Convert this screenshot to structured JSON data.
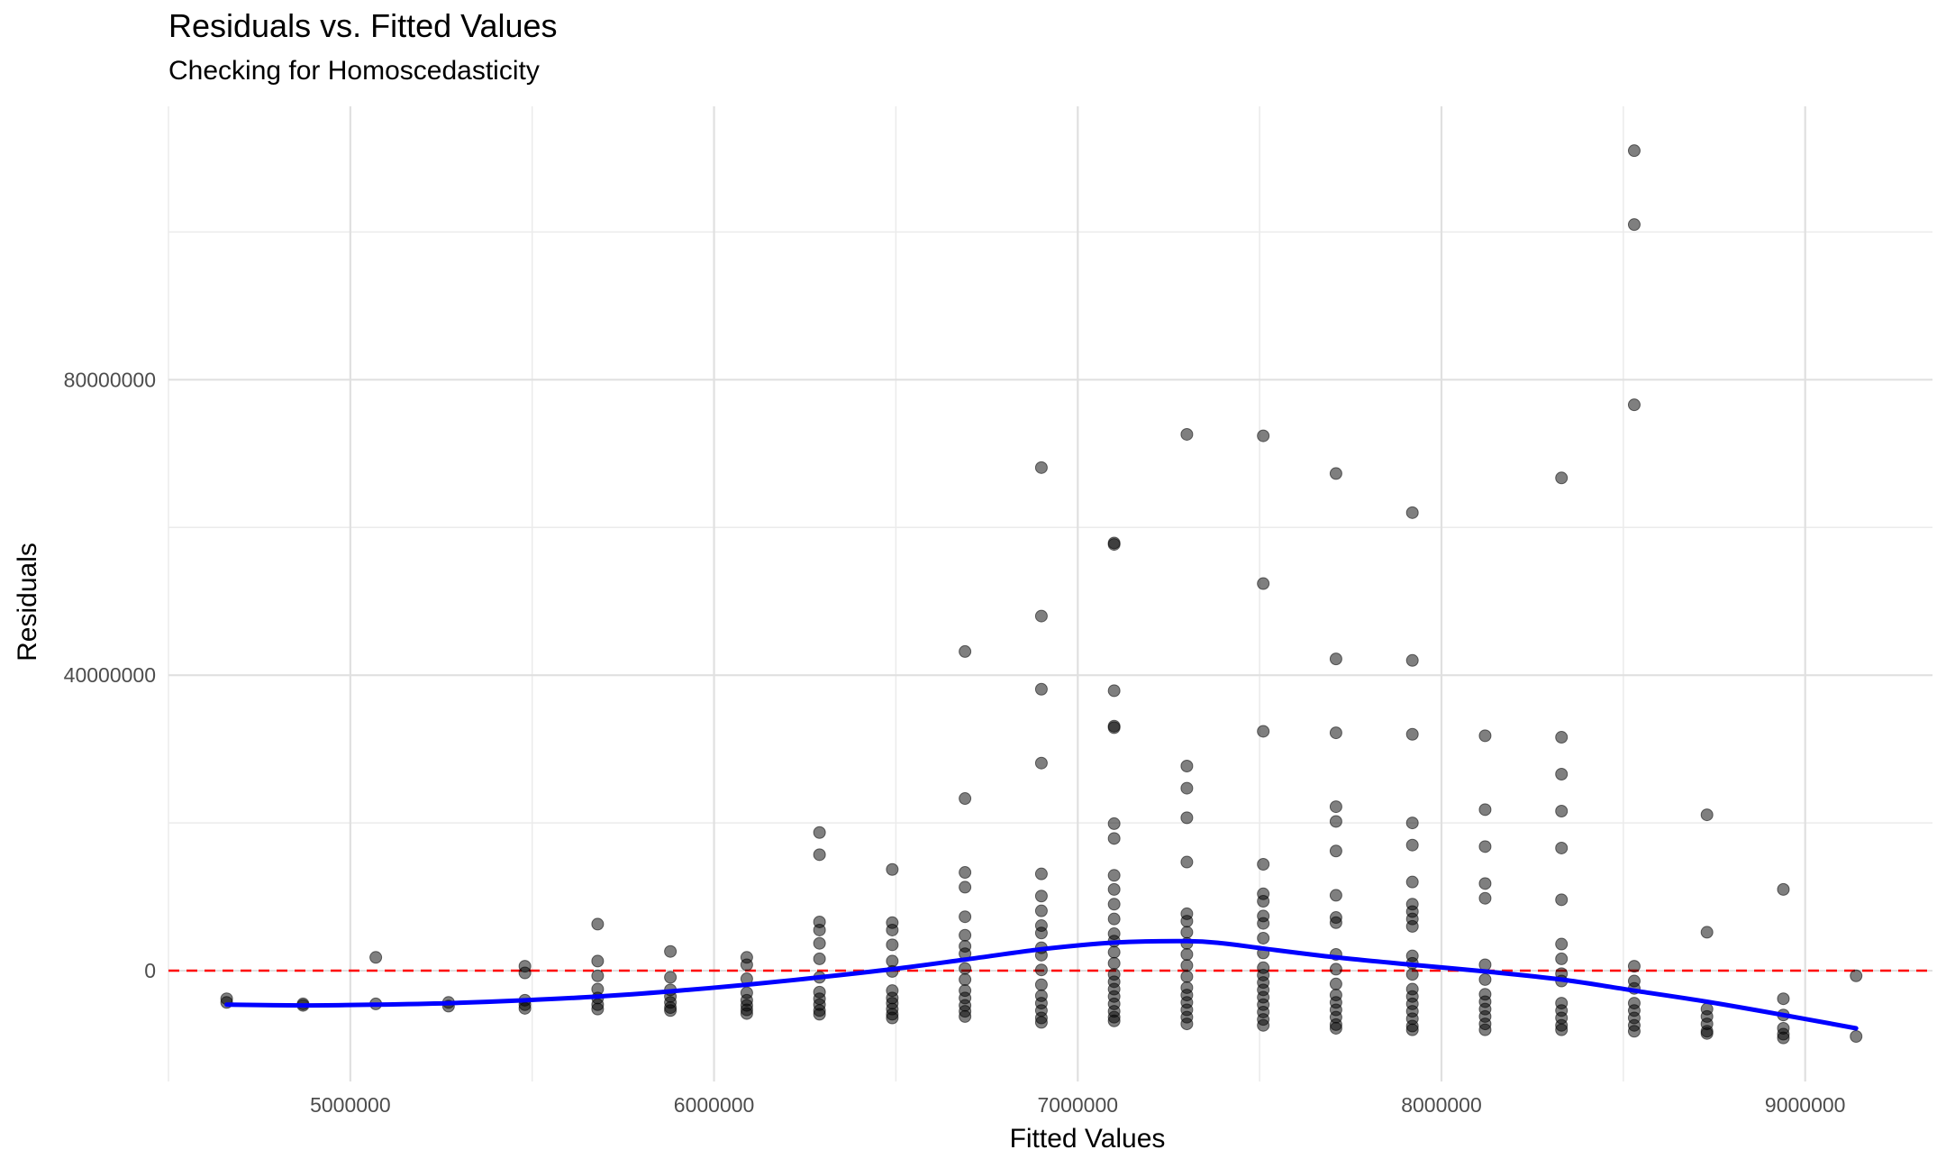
{
  "chart_data": {
    "type": "scatter",
    "title": "Residuals vs. Fitted Values",
    "subtitle": "Checking for Homoscedasticity",
    "xlabel": "Fitted Values",
    "ylabel": "Residuals",
    "xlim": [
      4500000,
      9350000
    ],
    "ylim": [
      -15000000,
      117000000
    ],
    "x_ticks": [
      5000000,
      6000000,
      7000000,
      8000000,
      9000000
    ],
    "y_ticks": [
      0,
      40000000,
      80000000
    ],
    "grid": true,
    "reference_line": {
      "y": 0,
      "color": "#ff0000",
      "style": "dashed"
    },
    "smooth_line_color": "#0000ff",
    "point_color": "#000000",
    "points": [
      [
        4660000,
        -3800000
      ],
      [
        4660000,
        -4300000
      ],
      [
        4870000,
        -4500000
      ],
      [
        4870000,
        -4700000
      ],
      [
        5070000,
        1800000
      ],
      [
        5070000,
        -4500000
      ],
      [
        5270000,
        -4300000
      ],
      [
        5270000,
        -4800000
      ],
      [
        5480000,
        600000
      ],
      [
        5480000,
        -300000
      ],
      [
        5480000,
        -4000000
      ],
      [
        5480000,
        -4600000
      ],
      [
        5480000,
        -5100000
      ],
      [
        5680000,
        6300000
      ],
      [
        5680000,
        1300000
      ],
      [
        5680000,
        -700000
      ],
      [
        5680000,
        -2500000
      ],
      [
        5680000,
        -3700000
      ],
      [
        5680000,
        -4600000
      ],
      [
        5680000,
        -5200000
      ],
      [
        5880000,
        2600000
      ],
      [
        5880000,
        -900000
      ],
      [
        5880000,
        -2600000
      ],
      [
        5880000,
        -3500000
      ],
      [
        5880000,
        -4300000
      ],
      [
        5880000,
        -5000000
      ],
      [
        5880000,
        -5400000
      ],
      [
        6090000,
        1800000
      ],
      [
        6090000,
        800000
      ],
      [
        6090000,
        -1100000
      ],
      [
        6090000,
        -3000000
      ],
      [
        6090000,
        -4000000
      ],
      [
        6090000,
        -4700000
      ],
      [
        6090000,
        -5300000
      ],
      [
        6090000,
        -5800000
      ],
      [
        6290000,
        18700000
      ],
      [
        6290000,
        15700000
      ],
      [
        6290000,
        6600000
      ],
      [
        6290000,
        5500000
      ],
      [
        6290000,
        3700000
      ],
      [
        6290000,
        1600000
      ],
      [
        6290000,
        -900000
      ],
      [
        6290000,
        -2900000
      ],
      [
        6290000,
        -3800000
      ],
      [
        6290000,
        -4600000
      ],
      [
        6290000,
        -5400000
      ],
      [
        6290000,
        -5900000
      ],
      [
        6490000,
        13700000
      ],
      [
        6490000,
        6500000
      ],
      [
        6490000,
        5500000
      ],
      [
        6490000,
        3500000
      ],
      [
        6490000,
        1300000
      ],
      [
        6490000,
        -100000
      ],
      [
        6490000,
        -2700000
      ],
      [
        6490000,
        -3700000
      ],
      [
        6490000,
        -4400000
      ],
      [
        6490000,
        -5200000
      ],
      [
        6490000,
        -5900000
      ],
      [
        6490000,
        -6400000
      ],
      [
        6690000,
        43200000
      ],
      [
        6690000,
        23300000
      ],
      [
        6690000,
        13300000
      ],
      [
        6690000,
        11300000
      ],
      [
        6690000,
        7300000
      ],
      [
        6690000,
        4800000
      ],
      [
        6690000,
        3300000
      ],
      [
        6690000,
        2300000
      ],
      [
        6690000,
        300000
      ],
      [
        6690000,
        -1200000
      ],
      [
        6690000,
        -2700000
      ],
      [
        6690000,
        -3700000
      ],
      [
        6690000,
        -4700000
      ],
      [
        6690000,
        -5500000
      ],
      [
        6690000,
        -6200000
      ],
      [
        6900000,
        68100000
      ],
      [
        6900000,
        48000000
      ],
      [
        6900000,
        38100000
      ],
      [
        6900000,
        28100000
      ],
      [
        6900000,
        13100000
      ],
      [
        6900000,
        10100000
      ],
      [
        6900000,
        8100000
      ],
      [
        6900000,
        6100000
      ],
      [
        6900000,
        5100000
      ],
      [
        6900000,
        3100000
      ],
      [
        6900000,
        2100000
      ],
      [
        6900000,
        100000
      ],
      [
        6900000,
        -1900000
      ],
      [
        6900000,
        -3400000
      ],
      [
        6900000,
        -4400000
      ],
      [
        6900000,
        -5400000
      ],
      [
        6900000,
        -6400000
      ],
      [
        6900000,
        -7000000
      ],
      [
        7100000,
        57900000
      ],
      [
        7100000,
        57700000
      ],
      [
        7100000,
        37900000
      ],
      [
        7100000,
        33100000
      ],
      [
        7100000,
        32900000
      ],
      [
        7100000,
        19900000
      ],
      [
        7100000,
        17900000
      ],
      [
        7100000,
        12900000
      ],
      [
        7100000,
        11000000
      ],
      [
        7100000,
        9000000
      ],
      [
        7100000,
        7000000
      ],
      [
        7100000,
        5000000
      ],
      [
        7100000,
        4000000
      ],
      [
        7100000,
        2500000
      ],
      [
        7100000,
        1000000
      ],
      [
        7100000,
        -500000
      ],
      [
        7100000,
        -1500000
      ],
      [
        7100000,
        -2500000
      ],
      [
        7100000,
        -3500000
      ],
      [
        7100000,
        -4500000
      ],
      [
        7100000,
        -5500000
      ],
      [
        7100000,
        -6300000
      ],
      [
        7100000,
        -6800000
      ],
      [
        7300000,
        72600000
      ],
      [
        7300000,
        27700000
      ],
      [
        7300000,
        24700000
      ],
      [
        7300000,
        20700000
      ],
      [
        7300000,
        14700000
      ],
      [
        7300000,
        7700000
      ],
      [
        7300000,
        6700000
      ],
      [
        7300000,
        5200000
      ],
      [
        7300000,
        3700000
      ],
      [
        7300000,
        2200000
      ],
      [
        7300000,
        700000
      ],
      [
        7300000,
        -800000
      ],
      [
        7300000,
        -2300000
      ],
      [
        7300000,
        -3300000
      ],
      [
        7300000,
        -4300000
      ],
      [
        7300000,
        -5300000
      ],
      [
        7300000,
        -6300000
      ],
      [
        7300000,
        -7200000
      ],
      [
        7510000,
        72400000
      ],
      [
        7510000,
        52400000
      ],
      [
        7510000,
        32400000
      ],
      [
        7510000,
        14400000
      ],
      [
        7510000,
        10400000
      ],
      [
        7510000,
        9400000
      ],
      [
        7510000,
        7400000
      ],
      [
        7510000,
        6400000
      ],
      [
        7510000,
        4400000
      ],
      [
        7510000,
        2400000
      ],
      [
        7510000,
        400000
      ],
      [
        7510000,
        -600000
      ],
      [
        7510000,
        -1600000
      ],
      [
        7510000,
        -2600000
      ],
      [
        7510000,
        -3600000
      ],
      [
        7510000,
        -4600000
      ],
      [
        7510000,
        -5600000
      ],
      [
        7510000,
        -6600000
      ],
      [
        7510000,
        -7400000
      ],
      [
        7710000,
        67300000
      ],
      [
        7710000,
        42200000
      ],
      [
        7710000,
        32200000
      ],
      [
        7710000,
        22200000
      ],
      [
        7710000,
        20200000
      ],
      [
        7710000,
        16200000
      ],
      [
        7710000,
        10200000
      ],
      [
        7710000,
        7200000
      ],
      [
        7710000,
        6500000
      ],
      [
        7710000,
        2200000
      ],
      [
        7710000,
        200000
      ],
      [
        7710000,
        -1800000
      ],
      [
        7710000,
        -3300000
      ],
      [
        7710000,
        -4300000
      ],
      [
        7710000,
        -5300000
      ],
      [
        7710000,
        -6300000
      ],
      [
        7710000,
        -7300000
      ],
      [
        7710000,
        -7800000
      ],
      [
        7920000,
        62000000
      ],
      [
        7920000,
        42000000
      ],
      [
        7920000,
        32000000
      ],
      [
        7920000,
        20000000
      ],
      [
        7920000,
        17000000
      ],
      [
        7920000,
        12000000
      ],
      [
        7920000,
        9000000
      ],
      [
        7920000,
        8000000
      ],
      [
        7920000,
        7000000
      ],
      [
        7920000,
        6000000
      ],
      [
        7920000,
        2000000
      ],
      [
        7920000,
        1000000
      ],
      [
        7920000,
        -500000
      ],
      [
        7920000,
        -2500000
      ],
      [
        7920000,
        -3500000
      ],
      [
        7920000,
        -4500000
      ],
      [
        7920000,
        -5500000
      ],
      [
        7920000,
        -6500000
      ],
      [
        7920000,
        -7500000
      ],
      [
        7920000,
        -8000000
      ],
      [
        8120000,
        31800000
      ],
      [
        8120000,
        21800000
      ],
      [
        8120000,
        16800000
      ],
      [
        8120000,
        11800000
      ],
      [
        8120000,
        9800000
      ],
      [
        8120000,
        800000
      ],
      [
        8120000,
        -1200000
      ],
      [
        8120000,
        -3200000
      ],
      [
        8120000,
        -4200000
      ],
      [
        8120000,
        -5200000
      ],
      [
        8120000,
        -6200000
      ],
      [
        8120000,
        -7200000
      ],
      [
        8120000,
        -8000000
      ],
      [
        8330000,
        66700000
      ],
      [
        8330000,
        31600000
      ],
      [
        8330000,
        26600000
      ],
      [
        8330000,
        21600000
      ],
      [
        8330000,
        16600000
      ],
      [
        8330000,
        9600000
      ],
      [
        8330000,
        3600000
      ],
      [
        8330000,
        1600000
      ],
      [
        8330000,
        -400000
      ],
      [
        8330000,
        -1400000
      ],
      [
        8330000,
        -4400000
      ],
      [
        8330000,
        -5400000
      ],
      [
        8330000,
        -6400000
      ],
      [
        8330000,
        -7400000
      ],
      [
        8330000,
        -8000000
      ],
      [
        8530000,
        111000000
      ],
      [
        8530000,
        101000000
      ],
      [
        8530000,
        76600000
      ],
      [
        8530000,
        600000
      ],
      [
        8530000,
        -1400000
      ],
      [
        8530000,
        -2400000
      ],
      [
        8530000,
        -4400000
      ],
      [
        8530000,
        -5400000
      ],
      [
        8530000,
        -6400000
      ],
      [
        8530000,
        -7400000
      ],
      [
        8530000,
        -8200000
      ],
      [
        8730000,
        21100000
      ],
      [
        8730000,
        5200000
      ],
      [
        8730000,
        -5200000
      ],
      [
        8730000,
        -6200000
      ],
      [
        8730000,
        -7200000
      ],
      [
        8730000,
        -8200000
      ],
      [
        8730000,
        -8500000
      ],
      [
        8940000,
        11000000
      ],
      [
        8940000,
        -3800000
      ],
      [
        8940000,
        -6000000
      ],
      [
        8940000,
        -7800000
      ],
      [
        8940000,
        -8600000
      ],
      [
        8940000,
        -9100000
      ],
      [
        9140000,
        -700000
      ],
      [
        9140000,
        -8900000
      ]
    ],
    "smooth_curve": [
      [
        4660000,
        -4600000
      ],
      [
        4870000,
        -4700000
      ],
      [
        5070000,
        -4600000
      ],
      [
        5270000,
        -4400000
      ],
      [
        5480000,
        -4000000
      ],
      [
        5680000,
        -3500000
      ],
      [
        5880000,
        -2800000
      ],
      [
        6090000,
        -1900000
      ],
      [
        6290000,
        -900000
      ],
      [
        6490000,
        200000
      ],
      [
        6690000,
        1500000
      ],
      [
        6900000,
        2900000
      ],
      [
        7100000,
        3800000
      ],
      [
        7300000,
        4000000
      ],
      [
        7400000,
        3700000
      ],
      [
        7510000,
        3000000
      ],
      [
        7710000,
        1800000
      ],
      [
        7920000,
        800000
      ],
      [
        8120000,
        -100000
      ],
      [
        8330000,
        -1200000
      ],
      [
        8530000,
        -2700000
      ],
      [
        8730000,
        -4200000
      ],
      [
        8940000,
        -6000000
      ],
      [
        9140000,
        -7800000
      ]
    ]
  }
}
